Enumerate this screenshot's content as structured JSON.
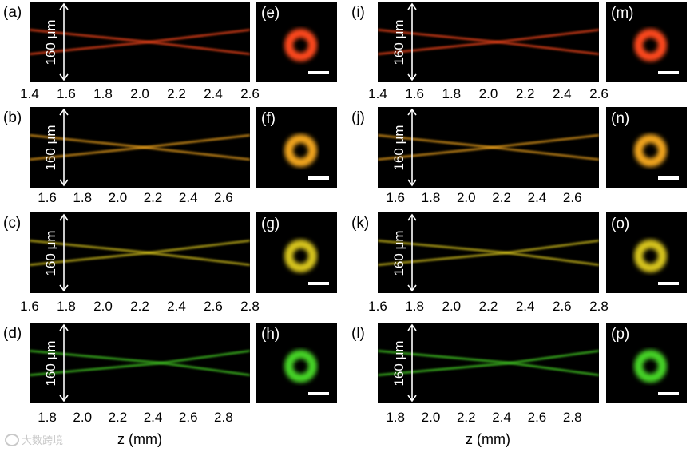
{
  "colors": {
    "red": "#ff4a1a",
    "orange": "#f2a51c",
    "yellow": "#d9c61e",
    "green": "#46d626"
  },
  "panels": [
    {
      "label": "(a)",
      "color": "red",
      "ylabel": "160 μm",
      "ticks": [
        "1.4",
        "1.6",
        "1.8",
        "2.0",
        "2.2",
        "2.4",
        "2.6"
      ],
      "axis_min": 1.4,
      "axis_max": 2.6,
      "waist_z": 2.05
    },
    {
      "label": "(b)",
      "color": "orange",
      "ylabel": "160 μm",
      "ticks": [
        "1.6",
        "1.8",
        "2.0",
        "2.2",
        "2.4",
        "2.6"
      ],
      "axis_min": 1.5,
      "axis_max": 2.75,
      "waist_z": 2.15
    },
    {
      "label": "(c)",
      "color": "yellow",
      "ylabel": "160 μm",
      "ticks": [
        "1.6",
        "1.8",
        "2.0",
        "2.2",
        "2.4",
        "2.6",
        "2.8"
      ],
      "axis_min": 1.6,
      "axis_max": 2.8,
      "waist_z": 2.25
    },
    {
      "label": "(d)",
      "color": "green",
      "ylabel": "160 μm",
      "ticks": [
        "1.8",
        "2.0",
        "2.2",
        "2.4",
        "2.6",
        "2.8"
      ],
      "axis_min": 1.7,
      "axis_max": 2.95,
      "waist_z": 2.45
    },
    {
      "label": "(i)",
      "color": "red",
      "ylabel": "160 μm",
      "ticks": [
        "1.4",
        "1.6",
        "1.8",
        "2.0",
        "2.2",
        "2.4",
        "2.6"
      ],
      "axis_min": 1.4,
      "axis_max": 2.6,
      "waist_z": 2.05
    },
    {
      "label": "(j)",
      "color": "orange",
      "ylabel": "160 μm",
      "ticks": [
        "1.6",
        "1.8",
        "2.0",
        "2.2",
        "2.4",
        "2.6"
      ],
      "axis_min": 1.5,
      "axis_max": 2.75,
      "waist_z": 2.15
    },
    {
      "label": "(k)",
      "color": "yellow",
      "ylabel": "160 μm",
      "ticks": [
        "1.6",
        "1.8",
        "2.0",
        "2.2",
        "2.4",
        "2.6",
        "2.8"
      ],
      "axis_min": 1.6,
      "axis_max": 2.8,
      "waist_z": 2.3
    },
    {
      "label": "(l)",
      "color": "green",
      "ylabel": "160 μm",
      "ticks": [
        "1.8",
        "2.0",
        "2.2",
        "2.4",
        "2.6",
        "2.8"
      ],
      "axis_min": 1.7,
      "axis_max": 2.95,
      "waist_z": 2.45
    }
  ],
  "rings": [
    {
      "label": "(e)",
      "color": "red"
    },
    {
      "label": "(f)",
      "color": "orange"
    },
    {
      "label": "(g)",
      "color": "yellow"
    },
    {
      "label": "(h)",
      "color": "green"
    },
    {
      "label": "(m)",
      "color": "red"
    },
    {
      "label": "(n)",
      "color": "orange"
    },
    {
      "label": "(o)",
      "color": "yellow"
    },
    {
      "label": "(p)",
      "color": "green"
    }
  ],
  "xlabel": "z (mm)",
  "watermark": "大数跨境"
}
